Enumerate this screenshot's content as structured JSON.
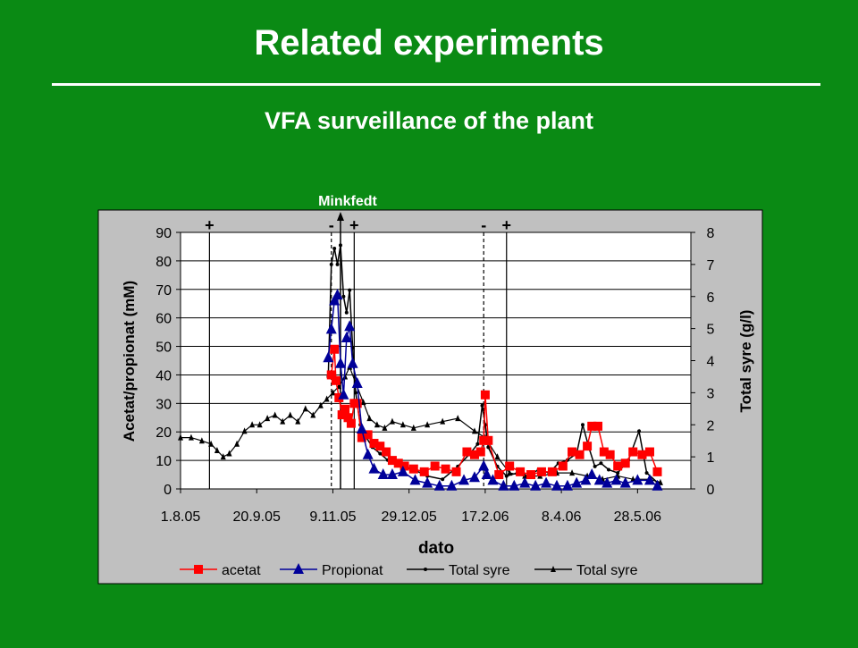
{
  "slide": {
    "title": "Related experiments",
    "subtitle": "VFA surveillance of the plant"
  },
  "colors": {
    "background": "#0a8a14",
    "plot_area": "#c0c0c0",
    "acetat": "#ff0000",
    "propionat": "#000099",
    "total": "#000000"
  },
  "chart_data": {
    "type": "line",
    "xlabel": "dato",
    "ylabel": "Acetat/propionat (mM)",
    "y2label": "Total syre (g/l)",
    "x_ticks": [
      "1.8.05",
      "20.9.05",
      "9.11.05",
      "29.12.05",
      "17.2.06",
      "8.4.06",
      "28.5.06"
    ],
    "xlim": [
      "1.8.05",
      "2.7.06"
    ],
    "ylim": [
      0,
      90
    ],
    "y_ticks": [
      0,
      10,
      20,
      30,
      40,
      50,
      60,
      70,
      80,
      90
    ],
    "y2lim": [
      0,
      8
    ],
    "y2_ticks": [
      0,
      1,
      2,
      3,
      4,
      5,
      6,
      7,
      8
    ],
    "grid": "horizontal",
    "legend_placement": "bottom",
    "event_markers": [
      {
        "date": "20.8.05",
        "label": "+",
        "style": "solid"
      },
      {
        "date": "8.11.05",
        "label": "-",
        "style": "dashed"
      },
      {
        "date": "23.11.05",
        "label": "+",
        "style": "solid"
      },
      {
        "date": "16.2.06",
        "label": "-",
        "style": "dashed"
      },
      {
        "date": "3.3.06",
        "label": "+",
        "style": "solid"
      }
    ],
    "annotation": {
      "text": "Minkfedt",
      "date": "14.11.05"
    },
    "series": [
      {
        "name": "acetat",
        "axis": "left",
        "marker": "square",
        "x": [
          "8.11.05",
          "10.11.05",
          "11.11.05",
          "13.11.05",
          "15.11.05",
          "17.11.05",
          "19.11.05",
          "21.11.05",
          "23.11.05",
          "25.11.05",
          "28.11.05",
          "2.12.05",
          "6.12.05",
          "10.12.05",
          "14.12.05",
          "18.12.05",
          "22.12.05",
          "26.12.05",
          "1.1.06",
          "8.1.06",
          "15.1.06",
          "22.1.06",
          "29.1.06",
          "5.2.06",
          "10.2.06",
          "14.2.06",
          "16.2.06",
          "17.2.06",
          "19.2.06",
          "26.2.06",
          "5.3.06",
          "12.3.06",
          "19.3.06",
          "26.3.06",
          "2.4.06",
          "9.4.06",
          "15.4.06",
          "20.4.06",
          "25.4.06",
          "28.4.06",
          "2.5.06",
          "6.5.06",
          "10.5.06",
          "15.5.06",
          "20.5.06",
          "25.5.06",
          "31.5.06",
          "5.6.06",
          "10.6.06"
        ],
        "y": [
          40,
          49,
          38,
          32,
          26,
          28,
          25,
          23,
          30,
          30,
          18,
          19,
          16,
          15,
          13,
          10,
          9,
          8,
          7,
          6,
          8,
          7,
          6,
          13,
          12,
          13,
          17,
          33,
          17,
          5,
          8,
          6,
          5,
          6,
          6,
          8,
          13,
          12,
          15,
          22,
          22,
          13,
          12,
          8,
          9,
          13,
          12,
          13,
          6
        ]
      },
      {
        "name": "Propionat",
        "axis": "left",
        "marker": "triangle",
        "x": [
          "6.11.05",
          "8.11.05",
          "10.11.05",
          "12.11.05",
          "14.11.05",
          "16.11.05",
          "18.11.05",
          "20.11.05",
          "22.11.05",
          "25.11.05",
          "28.11.05",
          "2.12.05",
          "6.12.05",
          "12.12.05",
          "18.12.05",
          "25.12.05",
          "2.1.06",
          "10.1.06",
          "18.1.06",
          "26.1.06",
          "3.2.06",
          "10.2.06",
          "16.2.06",
          "18.2.06",
          "22.2.06",
          "1.3.06",
          "8.3.06",
          "15.3.06",
          "22.3.06",
          "29.3.06",
          "5.4.06",
          "12.4.06",
          "18.4.06",
          "24.4.06",
          "28.4.06",
          "3.5.06",
          "8.5.06",
          "14.5.06",
          "20.5.06",
          "28.5.06",
          "5.6.06",
          "10.6.06"
        ],
        "y": [
          46,
          56,
          66,
          68,
          44,
          33,
          53,
          57,
          44,
          37,
          21,
          12,
          7,
          5,
          5,
          6,
          3,
          2,
          1,
          1,
          3,
          4,
          8,
          5,
          3,
          1,
          1,
          2,
          1,
          2,
          1,
          1,
          2,
          3,
          5,
          3,
          2,
          3,
          2,
          3,
          3,
          1
        ]
      },
      {
        "name": "Total syre",
        "axis": "right",
        "marker": "dot",
        "x": [
          "6.11.05",
          "8.11.05",
          "10.11.05",
          "12.11.05",
          "14.11.05",
          "16.11.05",
          "18.11.05",
          "20.11.05",
          "22.11.05",
          "24.11.05",
          "27.11.05",
          "1.12.05",
          "5.12.05",
          "10.12.05",
          "15.12.05",
          "20.12.05",
          "25.12.05",
          "1.1.06",
          "10.1.06",
          "20.1.06",
          "30.1.06",
          "7.2.06",
          "12.2.06",
          "15.2.06",
          "17.2.06",
          "19.2.06",
          "25.2.06",
          "3.3.06",
          "10.3.06",
          "17.3.06",
          "24.3.06",
          "31.3.06",
          "6.4.06",
          "12.4.06",
          "18.4.06",
          "22.4.06",
          "26.4.06",
          "30.4.06",
          "4.5.06",
          "9.5.06",
          "15.5.06",
          "22.5.06",
          "29.5.06",
          "3.6.06",
          "10.6.06"
        ],
        "y": [
          3.5,
          7.0,
          7.5,
          7.0,
          7.6,
          6.0,
          5.5,
          6.2,
          4.4,
          3.0,
          2.0,
          1.6,
          1.3,
          1.1,
          0.9,
          0.8,
          0.7,
          0.6,
          0.4,
          0.3,
          0.7,
          1.1,
          1.4,
          2.6,
          2.0,
          1.3,
          0.7,
          0.4,
          0.5,
          0.4,
          0.6,
          0.5,
          0.8,
          0.9,
          1.1,
          2.0,
          1.3,
          0.7,
          0.8,
          0.6,
          0.5,
          0.9,
          1.8,
          0.5,
          0.2
        ]
      },
      {
        "name": "Total syre",
        "axis": "right",
        "marker": "triangle-small",
        "x": [
          "1.8.05",
          "8.8.05",
          "15.8.05",
          "21.8.05",
          "25.8.05",
          "29.8.05",
          "2.9.05",
          "7.9.05",
          "12.9.05",
          "17.9.05",
          "22.9.05",
          "27.9.05",
          "2.10.05",
          "7.10.05",
          "12.10.05",
          "17.10.05",
          "22.10.05",
          "27.10.05",
          "1.11.05",
          "5.11.05",
          "9.11.05",
          "13.11.05",
          "17.11.05",
          "20.11.05",
          "24.11.05",
          "29.11.05",
          "3.12.05",
          "8.12.05",
          "13.12.05",
          "18.12.05",
          "25.12.05",
          "1.1.06",
          "10.1.06",
          "20.1.06",
          "30.1.06",
          "10.2.06",
          "17.2.06",
          "25.2.06",
          "5.3.06",
          "15.3.06",
          "25.3.06",
          "5.4.06",
          "15.4.06",
          "25.4.06",
          "5.5.06",
          "15.5.06",
          "25.5.06",
          "5.6.06",
          "12.6.06"
        ],
        "y": [
          1.6,
          1.6,
          1.5,
          1.4,
          1.2,
          1.0,
          1.1,
          1.4,
          1.8,
          2.0,
          2.0,
          2.2,
          2.3,
          2.1,
          2.3,
          2.1,
          2.5,
          2.3,
          2.6,
          2.8,
          3.0,
          3.2,
          3.5,
          3.8,
          3.3,
          2.7,
          2.2,
          2.0,
          1.9,
          2.1,
          2.0,
          1.9,
          2.0,
          2.1,
          2.2,
          1.8,
          1.6,
          1.0,
          0.5,
          0.4,
          0.4,
          0.5,
          0.5,
          0.4,
          0.3,
          0.4,
          0.3,
          0.3,
          0.2
        ]
      }
    ]
  }
}
